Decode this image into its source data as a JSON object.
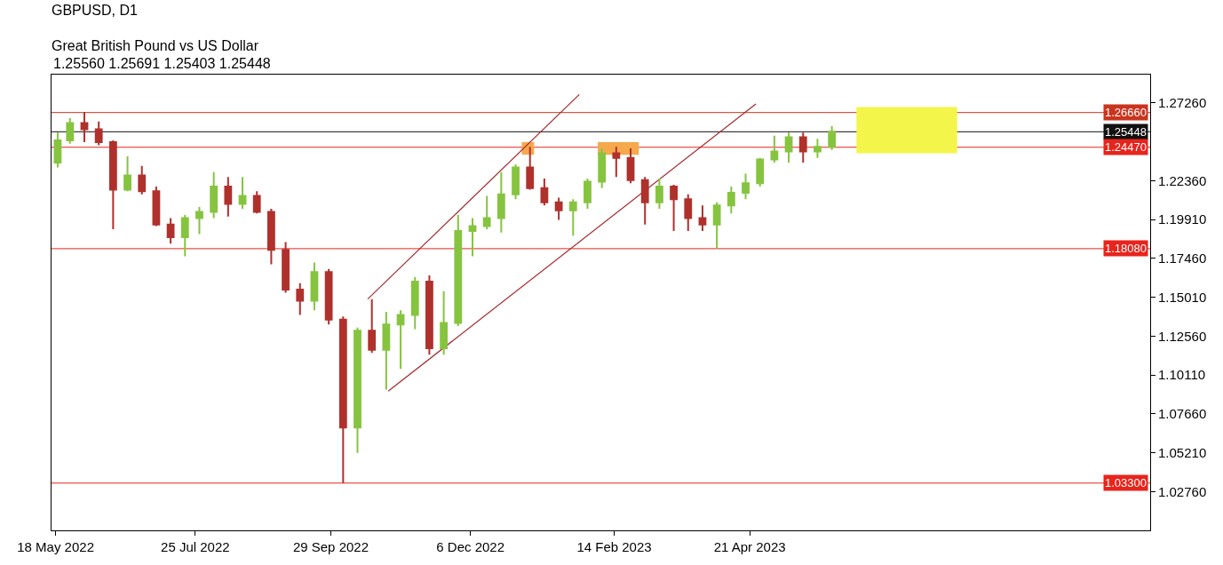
{
  "chart_data": {
    "type": "candlestick",
    "title": "GBPUSD, D1",
    "subtitle": "Great British Pound vs US Dollar",
    "annotations": [
      "1.25560 1.25691 1.25403 1.25448"
    ],
    "x": [
      "2022-05-19",
      "2022-05-25",
      "2022-06-01",
      "2022-06-08",
      "2022-06-15",
      "2022-06-22",
      "2022-06-29",
      "2022-07-06",
      "2022-07-13",
      "2022-07-20",
      "2022-07-27",
      "2022-08-03",
      "2022-08-10",
      "2022-08-17",
      "2022-08-24",
      "2022-08-31",
      "2022-09-07",
      "2022-09-14",
      "2022-09-21",
      "2022-09-28",
      "2022-10-05",
      "2022-10-12",
      "2022-10-19",
      "2022-10-26",
      "2022-11-02",
      "2022-11-09",
      "2022-11-16",
      "2022-11-23",
      "2022-11-30",
      "2022-12-07",
      "2022-12-14",
      "2022-12-21",
      "2022-12-28",
      "2023-01-04",
      "2023-01-11",
      "2023-01-18",
      "2023-01-25",
      "2023-02-01",
      "2023-02-08",
      "2023-02-15",
      "2023-02-22",
      "2023-03-01",
      "2023-03-08",
      "2023-03-15",
      "2023-03-22",
      "2023-03-29",
      "2023-04-05",
      "2023-04-12",
      "2023-04-19",
      "2023-04-26",
      "2023-05-03",
      "2023-05-10",
      "2023-05-17",
      "2023-05-24",
      "2023-05-31"
    ],
    "ohlc": [
      [
        1.235,
        1.254,
        1.232,
        1.249
      ],
      [
        1.249,
        1.263,
        1.247,
        1.26
      ],
      [
        1.26,
        1.267,
        1.248,
        1.256
      ],
      [
        1.256,
        1.261,
        1.246,
        1.248
      ],
      [
        1.248,
        1.249,
        1.193,
        1.218
      ],
      [
        1.218,
        1.239,
        1.217,
        1.227
      ],
      [
        1.227,
        1.233,
        1.215,
        1.217
      ],
      [
        1.217,
        1.22,
        1.195,
        1.196
      ],
      [
        1.196,
        1.2,
        1.184,
        1.188
      ],
      [
        1.188,
        1.202,
        1.176,
        1.2
      ],
      [
        1.2,
        1.207,
        1.19,
        1.204
      ],
      [
        1.204,
        1.229,
        1.2,
        1.22
      ],
      [
        1.22,
        1.226,
        1.201,
        1.209
      ],
      [
        1.209,
        1.226,
        1.206,
        1.214
      ],
      [
        1.214,
        1.217,
        1.203,
        1.204
      ],
      [
        1.204,
        1.206,
        1.171,
        1.18
      ],
      [
        1.18,
        1.185,
        1.153,
        1.155
      ],
      [
        1.155,
        1.159,
        1.139,
        1.148
      ],
      [
        1.148,
        1.172,
        1.142,
        1.166
      ],
      [
        1.166,
        1.168,
        1.133,
        1.136
      ],
      [
        1.136,
        1.138,
        1.033,
        1.068
      ],
      [
        1.068,
        1.131,
        1.052,
        1.129
      ],
      [
        1.129,
        1.149,
        1.115,
        1.117
      ],
      [
        1.117,
        1.141,
        1.092,
        1.133
      ],
      [
        1.133,
        1.142,
        1.105,
        1.139
      ],
      [
        1.139,
        1.163,
        1.13,
        1.16
      ],
      [
        1.16,
        1.164,
        1.114,
        1.118
      ],
      [
        1.118,
        1.154,
        1.114,
        1.134
      ],
      [
        1.134,
        1.202,
        1.132,
        1.192
      ],
      [
        1.192,
        1.2,
        1.176,
        1.195
      ],
      [
        1.195,
        1.214,
        1.193,
        1.2
      ],
      [
        1.2,
        1.229,
        1.191,
        1.215
      ],
      [
        1.215,
        1.234,
        1.212,
        1.232
      ],
      [
        1.232,
        1.245,
        1.218,
        1.219
      ],
      [
        1.219,
        1.225,
        1.208,
        1.21
      ],
      [
        1.21,
        1.213,
        1.199,
        1.205
      ],
      [
        1.205,
        1.212,
        1.189,
        1.21
      ],
      [
        1.21,
        1.225,
        1.206,
        1.223
      ],
      [
        1.223,
        1.244,
        1.219,
        1.241
      ],
      [
        1.241,
        1.245,
        1.226,
        1.238
      ],
      [
        1.238,
        1.244,
        1.222,
        1.224
      ],
      [
        1.224,
        1.226,
        1.196,
        1.21
      ],
      [
        1.21,
        1.225,
        1.206,
        1.22
      ],
      [
        1.22,
        1.221,
        1.192,
        1.212
      ],
      [
        1.212,
        1.215,
        1.192,
        1.2
      ],
      [
        1.2,
        1.208,
        1.192,
        1.196
      ],
      [
        1.196,
        1.21,
        1.181,
        1.208
      ],
      [
        1.208,
        1.22,
        1.203,
        1.216
      ],
      [
        1.216,
        1.228,
        1.212,
        1.222
      ],
      [
        1.222,
        1.238,
        1.22,
        1.237
      ],
      [
        1.237,
        1.252,
        1.235,
        1.242
      ],
      [
        1.242,
        1.254,
        1.235,
        1.251
      ],
      [
        1.251,
        1.254,
        1.235,
        1.242
      ],
      [
        1.242,
        1.25,
        1.238,
        1.245
      ],
      [
        1.245,
        1.258,
        1.243,
        1.25448
      ]
    ],
    "colors": [
      "#86c440",
      "#86c440",
      "#b0312c",
      "#b0312c",
      "#b0312c",
      "#86c440",
      "#b0312c",
      "#b0312c",
      "#b0312c",
      "#86c440",
      "#86c440",
      "#86c440",
      "#b0312c",
      "#86c440",
      "#b0312c",
      "#b0312c",
      "#b0312c",
      "#b0312c",
      "#86c440",
      "#b0312c",
      "#b0312c",
      "#86c440",
      "#b0312c",
      "#86c440",
      "#86c440",
      "#86c440",
      "#b0312c",
      "#86c440",
      "#86c440",
      "#86c440",
      "#86c440",
      "#86c440",
      "#86c440",
      "#b0312c",
      "#b0312c",
      "#b0312c",
      "#86c440",
      "#86c440",
      "#86c440",
      "#b0312c",
      "#b0312c",
      "#b0312c",
      "#86c440",
      "#b0312c",
      "#b0312c",
      "#b0312c",
      "#86c440",
      "#86c440",
      "#86c440",
      "#86c440",
      "#86c440",
      "#86c440",
      "#b0312c",
      "#86c440",
      "#86c440"
    ],
    "series": [
      {
        "type": "line",
        "x": [
          "2022-12-31",
          "2023-01-06"
        ],
        "values": [
          null,
          null
        ],
        "lower": [
          1.24,
          1.24
        ],
        "upper": [
          1.248,
          1.248
        ],
        "color": "#f6a84c"
      },
      {
        "type": "line",
        "x": [
          "2023-02-06",
          "2023-02-26"
        ],
        "values": [
          null,
          null
        ],
        "lower": [
          1.24,
          1.24
        ],
        "upper": [
          1.248,
          1.248
        ],
        "color": "#f6a84c"
      },
      {
        "type": "line",
        "x": [
          "2023-06-12",
          "2023-07-31"
        ],
        "values": [
          null,
          null
        ],
        "lower": [
          1.241,
          1.241
        ],
        "upper": [
          1.27,
          1.27
        ],
        "color": "#f3f54a"
      },
      {
        "type": "line",
        "x": [
          "2022-10-17",
          "2023-01-28"
        ],
        "values": [
          1.149,
          1.278
        ],
        "color": "#a8282c"
      },
      {
        "type": "line",
        "x": [
          "2022-10-27",
          "2023-04-24"
        ],
        "values": [
          1.091,
          1.272
        ],
        "color": "#a8282c"
      }
    ],
    "ref_lines": [
      {
        "axis": "y",
        "value": 1.2666,
        "label": "1.26660",
        "color": "#c9351e"
      },
      {
        "axis": "y",
        "value": 1.25448,
        "label": "1.25448",
        "color": "#111111"
      },
      {
        "axis": "y",
        "value": 1.2447,
        "label": "1.24470",
        "color": "#e8241c"
      },
      {
        "axis": "y",
        "value": 1.1808,
        "label": "1.18080",
        "color": "#e8241c"
      },
      {
        "axis": "y",
        "value": 1.033,
        "label": "1.03300",
        "color": "#e8241c"
      }
    ],
    "xlim": [
      "2022-05-16",
      "2023-11-02"
    ],
    "xticks": [
      {
        "value": "2022-05-18",
        "label": "18 May 2022"
      },
      {
        "value": "2022-07-25",
        "label": "25 Jul 2022"
      },
      {
        "value": "2022-09-29",
        "label": "29 Sep 2022"
      },
      {
        "value": "2022-12-06",
        "label": "6 Dec 2022"
      },
      {
        "value": "2023-02-14",
        "label": "14 Feb 2023"
      },
      {
        "value": "2023-04-21",
        "label": "21 Apr 2023"
      }
    ],
    "ylim": [
      1.0032,
      1.2905
    ],
    "yticks": [
      {
        "value": 1.0276,
        "label": "1.02760"
      },
      {
        "value": 1.0521,
        "label": "1.05210"
      },
      {
        "value": 1.0766,
        "label": "1.07660"
      },
      {
        "value": 1.1011,
        "label": "1.10110"
      },
      {
        "value": 1.1256,
        "label": "1.12560"
      },
      {
        "value": 1.1501,
        "label": "1.15010"
      },
      {
        "value": 1.1746,
        "label": "1.17460"
      },
      {
        "value": 1.1991,
        "label": "1.19910"
      },
      {
        "value": 1.2236,
        "label": "1.22360"
      },
      {
        "value": 1.2726,
        "label": "1.27260"
      }
    ]
  }
}
